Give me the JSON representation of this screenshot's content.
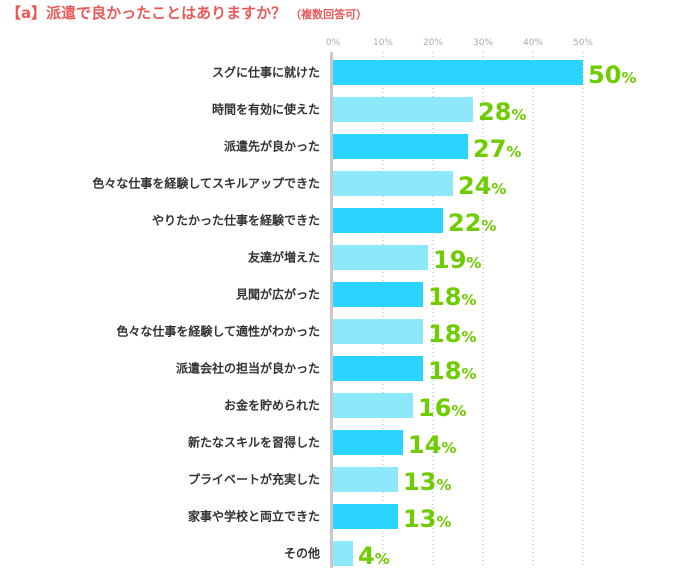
{
  "title": "【a】派遣で良かったことはありますか？",
  "subtitle": "（複数回答可）",
  "colors": {
    "dark_bar": "#2ad4ff",
    "light_bar": "#8ee8fc",
    "value_label": "#6fcc00",
    "title": "#e85a5a",
    "axis": "#c8c8c8"
  },
  "chart_data": {
    "type": "bar",
    "orientation": "horizontal",
    "title": "【a】派遣で良かったことはありますか？（複数回答可）",
    "categories": [
      "スグに仕事に就けた",
      "時間を有効に使えた",
      "派遣先が良かった",
      "色々な仕事を経験してスキルアップできた",
      "やりたかった仕事を経験できた",
      "友達が増えた",
      "見聞が広がった",
      "色々な仕事を経験して適性がわかった",
      "派遣会社の担当が良かった",
      "お金を貯められた",
      "新たなスキルを習得した",
      "プライベートが充実した",
      "家事や学校と両立できた",
      "その他"
    ],
    "values": [
      50,
      28,
      27,
      24,
      22,
      19,
      18,
      18,
      18,
      16,
      14,
      13,
      13,
      4
    ],
    "xlim": [
      0,
      50
    ],
    "ticks": [
      "0%",
      "10%",
      "20%",
      "30%",
      "40%",
      "50%"
    ],
    "value_suffix": "%",
    "grid": true
  }
}
